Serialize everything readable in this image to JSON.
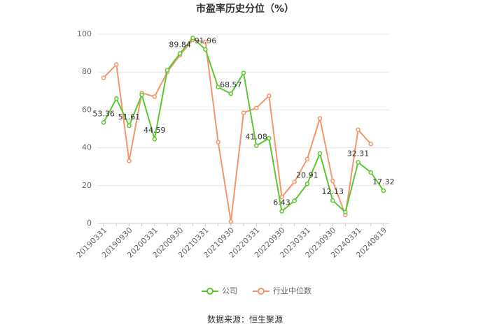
{
  "chart_data": {
    "type": "line",
    "title": "市盈率历史分位（%）",
    "source": "数据来源：恒生聚源",
    "categories": [
      "20190331",
      null,
      "20190930",
      null,
      "20200331",
      null,
      "20200930",
      null,
      "20210331",
      null,
      "20210930",
      null,
      "20220331",
      null,
      "20220930",
      null,
      "20230331",
      null,
      "20230930",
      null,
      "20240331",
      null,
      "20240819"
    ],
    "series": [
      {
        "name": "公司",
        "color": "#5cc72f",
        "values": [
          53.36,
          66,
          51.61,
          68,
          44.59,
          81,
          89.84,
          98,
          91.96,
          72,
          68.57,
          79.5,
          41.08,
          45,
          6.43,
          12,
          20.91,
          37,
          12.13,
          6,
          32.31,
          27,
          17.32
        ],
        "value_labels": [
          "53.36",
          null,
          "51.61",
          null,
          "44.59",
          null,
          "89.84",
          null,
          "91.96",
          null,
          "68.57",
          null,
          "41.08",
          null,
          "6.43",
          null,
          "20.91",
          null,
          "12.13",
          null,
          "32.31",
          null,
          "17.32"
        ]
      },
      {
        "name": "行业中位数",
        "color": "#f4956b",
        "values": [
          77,
          84,
          33,
          69,
          67,
          80,
          89,
          97,
          96,
          43,
          1,
          58.5,
          61,
          67.5,
          14,
          22,
          34,
          55.5,
          22.5,
          4.5,
          49.5,
          42,
          null
        ]
      }
    ],
    "ylim": [
      0,
      100
    ],
    "yticks": [
      0,
      20,
      40,
      60,
      80,
      100
    ],
    "grid": true,
    "legend": "bottom"
  }
}
